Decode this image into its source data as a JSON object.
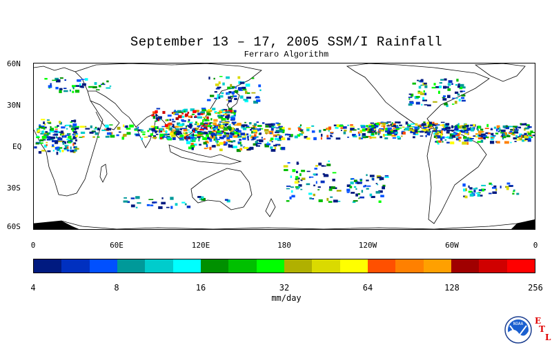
{
  "title": "September 13 – 17, 2005 SSM/I Rainfall",
  "subtitle": "Ferraro Algorithm",
  "map": {
    "lat_labels": [
      "60N",
      "30N",
      "EQ",
      "30S",
      "60S"
    ],
    "lat_values": [
      60,
      30,
      0,
      -30,
      -60
    ],
    "lon_labels": [
      "0",
      "60E",
      "120E",
      "180",
      "120W",
      "60W",
      "0"
    ],
    "lon_values": [
      0,
      60,
      120,
      180,
      240,
      300,
      360
    ],
    "lat_range": [
      -60,
      60
    ],
    "lon_range": [
      0,
      360
    ]
  },
  "colorbar": {
    "colors": [
      "#001a80",
      "#0030c0",
      "#0050ff",
      "#009999",
      "#00cccc",
      "#00ffff",
      "#009000",
      "#00c000",
      "#00ff00",
      "#b0b000",
      "#dada00",
      "#ffff00",
      "#ff5000",
      "#ff8000",
      "#ffa000",
      "#a00000",
      "#d00000",
      "#ff0000"
    ],
    "tick_labels": [
      "4",
      "8",
      "16",
      "32",
      "64",
      "128",
      "256"
    ],
    "units": "mm/day"
  },
  "logo": {
    "noaa_text": "NOAA",
    "etl_letters": [
      "E",
      "T",
      "L"
    ]
  }
}
